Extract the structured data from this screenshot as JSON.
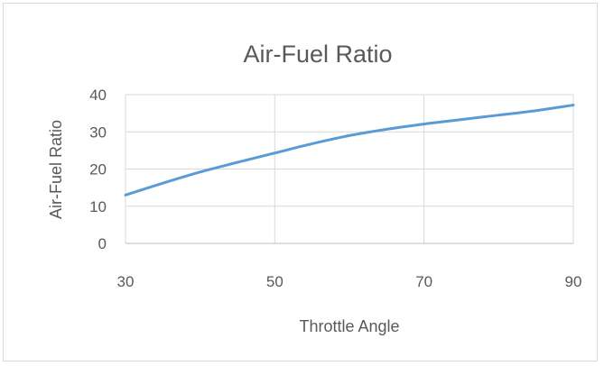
{
  "chart_data": {
    "type": "line",
    "title": "Air-Fuel Ratio",
    "xlabel": "Throttle Angle",
    "ylabel": "Air-Fuel Ratio",
    "xlim": [
      30,
      90
    ],
    "ylim": [
      0,
      40
    ],
    "x_ticks": [
      30,
      50,
      70,
      90
    ],
    "y_ticks": [
      0,
      10,
      20,
      30,
      40
    ],
    "grid": true,
    "legend": "none",
    "series": [
      {
        "color": "#5b9bd5",
        "x": [
          30,
          35,
          40,
          45,
          50,
          55,
          60,
          65,
          70,
          75,
          80,
          85,
          90
        ],
        "y": [
          13,
          16.2,
          19.2,
          21.8,
          24.3,
          26.8,
          29,
          30.7,
          32.1,
          33.3,
          34.5,
          35.7,
          37.2
        ]
      }
    ]
  }
}
